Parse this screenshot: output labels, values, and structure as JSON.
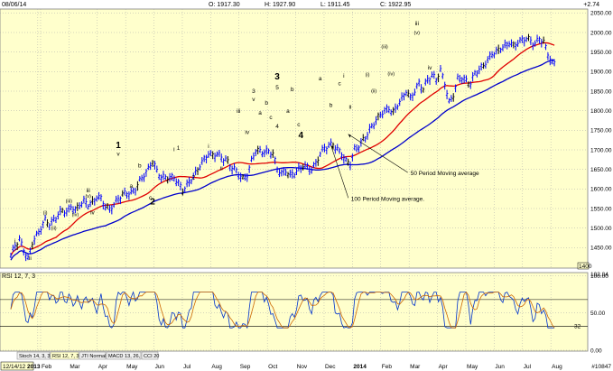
{
  "header": {
    "date": "08/06/14",
    "open": "O: 1917.30",
    "high": "H: 1927.90",
    "low": "L: 1911.45",
    "close": "C: 1922.95",
    "change": "+2.74"
  },
  "panel_tabs": [
    "Stoch 14, 3, 3",
    "RSI 12, 7, 3",
    "JTI Normal",
    "MACD 13, 26, 9",
    "CCI 20"
  ],
  "footer": {
    "start_date": "12/14/12",
    "record_count": "#10847"
  },
  "colors": {
    "background": "#ffffcc",
    "price_bar": "#0000ff",
    "ma50": "#e00000",
    "ma100": "#0000cc",
    "rsi": "#0033cc",
    "rsi_signal": "#cc6600",
    "grid": "#999999",
    "label_red": "#e00000"
  },
  "chart_data": [
    {
      "type": "line",
      "x_tick_labels": [
        "2013",
        "Feb",
        "Mar",
        "Apr",
        "May",
        "Jun",
        "Jul",
        "Aug",
        "Sep",
        "Oct",
        "Nov",
        "Dec",
        "2014",
        "Feb",
        "Mar",
        "Apr",
        "May",
        "Jun",
        "Jul",
        "Aug"
      ],
      "y_ticks": [
        1450,
        1500,
        1550,
        1600,
        1650,
        1700,
        1750,
        1800,
        1850,
        1900,
        1950,
        2000,
        2050
      ],
      "y_tick_labels": [
        "1450.00",
        "1500.00",
        "1550.00",
        "1600.00",
        "1650.00",
        "1700.00",
        "1750.00",
        "1800.00",
        "1850.00",
        "1900.00",
        "1950.00",
        "2000.00",
        "2050.00"
      ],
      "ylim": [
        1400,
        2060
      ],
      "grid": true,
      "scale_marker": "1400",
      "series": [
        {
          "name": "Price",
          "x": [
            0.0,
            0.2,
            0.4,
            0.6,
            0.8,
            1.0,
            1.2,
            1.4,
            1.6,
            1.8,
            2.0,
            2.2,
            2.4,
            2.6,
            2.8,
            3.0,
            3.2,
            3.4,
            3.6,
            3.8,
            4.0,
            4.2,
            4.4,
            4.6,
            4.8,
            5.0,
            5.2,
            5.4,
            5.6,
            5.8,
            6.0,
            6.2,
            6.4,
            6.6,
            6.8,
            7.0,
            7.6,
            7.8,
            8.0,
            8.2,
            8.4,
            8.6,
            8.8,
            9.0,
            9.2,
            9.4,
            9.6,
            9.8,
            10.0,
            10.2,
            10.4,
            10.6,
            10.8,
            11.0,
            11.2,
            11.4,
            11.6,
            11.8,
            12.0,
            12.2,
            12.4,
            12.6,
            12.8,
            13.0,
            13.2,
            13.4,
            13.6,
            13.8,
            14.0,
            14.2,
            14.4,
            14.6,
            14.8,
            15.0,
            15.2,
            15.4,
            15.6,
            15.8,
            16.0,
            16.2,
            16.4,
            16.6,
            16.8,
            17.0,
            17.2,
            17.4,
            17.6,
            17.8,
            18.0,
            18.2,
            18.4,
            18.6
          ],
          "y": [
            1430,
            1455,
            1470,
            1445,
            1420,
            1462,
            1480,
            1500,
            1520,
            1510,
            1520,
            1535,
            1545,
            1540,
            1555,
            1545,
            1560,
            1568,
            1560,
            1565,
            1580,
            1575,
            1555,
            1548,
            1560,
            1575,
            1585,
            1590,
            1588,
            1600,
            1620,
            1635,
            1650,
            1672,
            1645,
            1630,
            1628,
            1615,
            1595,
            1610,
            1625,
            1640,
            1660,
            1675,
            1690,
            1685,
            1690,
            1680,
            1675,
            1660,
            1650,
            1640,
            1625,
            1635,
            1670,
            1700,
            1695,
            1695,
            1695,
            1690,
            1650,
            1640,
            1645,
            1635,
            1640,
            1650,
            1660,
            1655,
            1650,
            1665,
            1690,
            1705,
            1710,
            1715,
            1700,
            1690,
            1670,
            1665,
            1700,
            1710,
            1725,
            1740,
            1760,
            1775,
            1790,
            1800,
            1805,
            1795,
            1815,
            1830,
            1850,
            1832
          ]
        }
      ],
      "x_unit_note": "x values are calendar months since Jan 2013"
    },
    {
      "type": "line",
      "title": "RSI 12, 7, 3",
      "y_ticks": [
        0,
        50,
        100
      ],
      "y_tick_labels": [
        "0.00",
        "50.00",
        "100.00"
      ],
      "top_label": "102.84",
      "ylim": [
        0,
        103
      ],
      "reference_lines": [
        32,
        68
      ],
      "reference_label": "32",
      "series": [
        {
          "name": "RSI"
        },
        {
          "name": "Signal"
        }
      ]
    }
  ],
  "annotations": {
    "waves": [
      {
        "t": "i",
        "x": 0.2,
        "y": 1462,
        "s": "small",
        "c": "black"
      },
      {
        "t": "ii",
        "x": 0.9,
        "y": 1418,
        "s": "small",
        "c": "black",
        "below": true
      },
      {
        "t": "(i)",
        "x": 1.6,
        "y": 1535,
        "s": "tiny",
        "c": "black"
      },
      {
        "t": "(ii)",
        "x": 2.0,
        "y": 1496,
        "s": "tiny",
        "c": "black",
        "below": true
      },
      {
        "t": "(iii)",
        "x": 2.7,
        "y": 1565,
        "s": "tiny",
        "c": "black"
      },
      {
        "t": "(iv)",
        "x": 3.0,
        "y": 1530,
        "s": "tiny",
        "c": "black",
        "below": true
      },
      {
        "t": "(v)",
        "x": 3.6,
        "y": 1578,
        "s": "tiny",
        "c": "black"
      },
      {
        "t": "iii",
        "x": 3.6,
        "y": 1592,
        "s": "small",
        "c": "black"
      },
      {
        "t": "iv",
        "x": 3.8,
        "y": 1535,
        "s": "small",
        "c": "black",
        "below": true
      },
      {
        "t": "1",
        "x": 5.0,
        "y": 1705,
        "s": "big",
        "c": "black"
      },
      {
        "t": "v",
        "x": 5.0,
        "y": 1685,
        "s": "small",
        "c": "black"
      },
      {
        "t": "a",
        "x": 5.6,
        "y": 1603,
        "s": "small",
        "c": "red",
        "below": true
      },
      {
        "t": "b",
        "x": 6.0,
        "y": 1655,
        "s": "small",
        "c": "red"
      },
      {
        "t": "c",
        "x": 6.5,
        "y": 1573,
        "s": "small",
        "c": "red",
        "below": true
      },
      {
        "t": "2",
        "x": 6.6,
        "y": 1560,
        "s": "big",
        "c": "black",
        "below": true
      },
      {
        "t": "i",
        "x": 7.6,
        "y": 1696,
        "s": "small",
        "c": "black"
      },
      {
        "t": "1",
        "x": 7.8,
        "y": 1700,
        "s": "small",
        "c": "black"
      },
      {
        "t": "2",
        "x": 8.5,
        "y": 1625,
        "s": "small",
        "c": "black",
        "below": true
      },
      {
        "t": "i",
        "x": 9.2,
        "y": 1705,
        "s": "small",
        "c": "black"
      },
      {
        "t": "ii",
        "x": 9.8,
        "y": 1648,
        "s": "small",
        "c": "black",
        "below": true
      },
      {
        "t": "iii",
        "x": 10.6,
        "y": 1795,
        "s": "small",
        "c": "black"
      },
      {
        "t": "iv",
        "x": 11.0,
        "y": 1740,
        "s": "small",
        "c": "black",
        "below": true
      },
      {
        "t": "3",
        "x": 11.3,
        "y": 1845,
        "s": "small",
        "c": "black"
      },
      {
        "t": "v",
        "x": 11.3,
        "y": 1825,
        "s": "small",
        "c": "black"
      },
      {
        "t": "a",
        "x": 11.6,
        "y": 1790,
        "s": "small",
        "c": "red"
      },
      {
        "t": "b",
        "x": 11.9,
        "y": 1815,
        "s": "small",
        "c": "red"
      },
      {
        "t": "c",
        "x": 12.1,
        "y": 1778,
        "s": "small",
        "c": "red"
      },
      {
        "t": "3",
        "x": 12.4,
        "y": 1880,
        "s": "big",
        "c": "black"
      },
      {
        "t": "5",
        "x": 12.4,
        "y": 1855,
        "s": "small",
        "c": "black"
      },
      {
        "t": "4",
        "x": 12.4,
        "y": 1755,
        "s": "small",
        "c": "black",
        "below": true
      },
      {
        "t": "b",
        "x": 13.1,
        "y": 1850,
        "s": "small",
        "c": "red"
      },
      {
        "t": "a",
        "x": 12.9,
        "y": 1795,
        "s": "small",
        "c": "red"
      },
      {
        "t": "c",
        "x": 13.4,
        "y": 1760,
        "s": "small",
        "c": "red",
        "below": true
      },
      {
        "t": "4",
        "x": 13.5,
        "y": 1730,
        "s": "big",
        "c": "black",
        "below": true
      },
      {
        "t": "a",
        "x": 14.4,
        "y": 1878,
        "s": "small",
        "c": "red"
      },
      {
        "t": "b",
        "x": 14.9,
        "y": 1810,
        "s": "small",
        "c": "red",
        "below": true
      },
      {
        "t": "c",
        "x": 15.3,
        "y": 1865,
        "s": "small",
        "c": "red"
      },
      {
        "t": "i",
        "x": 15.5,
        "y": 1885,
        "s": "small",
        "c": "black"
      },
      {
        "t": "ii",
        "x": 15.8,
        "y": 1805,
        "s": "small",
        "c": "black",
        "below": true
      },
      {
        "t": "(i)",
        "x": 16.6,
        "y": 1888,
        "s": "tiny",
        "c": "black"
      },
      {
        "t": "(ii)",
        "x": 16.9,
        "y": 1847,
        "s": "tiny",
        "c": "black",
        "below": true
      },
      {
        "t": "(iii)",
        "x": 17.4,
        "y": 1960,
        "s": "tiny",
        "c": "black"
      },
      {
        "t": "(iv)",
        "x": 17.7,
        "y": 1890,
        "s": "tiny",
        "c": "black"
      },
      {
        "t": "(v)",
        "x": 18.9,
        "y": 1995,
        "s": "tiny",
        "c": "black"
      },
      {
        "t": "iii",
        "x": 18.9,
        "y": 2018,
        "s": "small",
        "c": "black"
      },
      {
        "t": "iv",
        "x": 19.5,
        "y": 1905,
        "s": "small",
        "c": "black",
        "below": true
      }
    ],
    "labels": [
      {
        "text": "50 Period Moving average",
        "x": 14.1,
        "y": 1635,
        "ax": 11.9,
        "ay": 1740
      },
      {
        "text": "100 Period Moving average.",
        "x": 12.0,
        "y": 1570,
        "ax": 11.3,
        "ay": 1710
      }
    ]
  }
}
